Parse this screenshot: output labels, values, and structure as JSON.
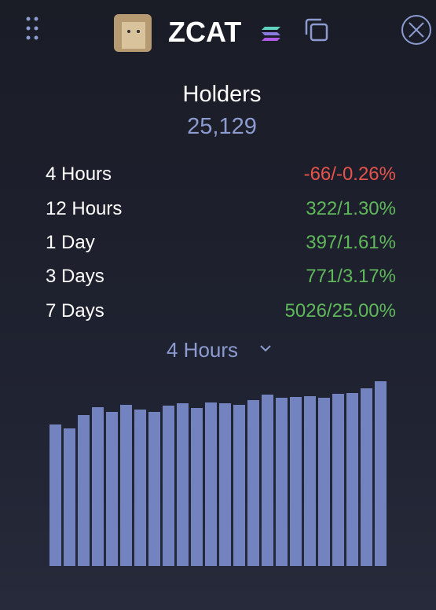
{
  "header": {
    "title": "ZCAT"
  },
  "holders": {
    "label": "Holders",
    "value": "25,129"
  },
  "stats": [
    {
      "period": "4 Hours",
      "change": "-66/-0.26%",
      "color": "#e5534b"
    },
    {
      "period": "12 Hours",
      "change": "322/1.30%",
      "color": "#5fb85a"
    },
    {
      "period": "1 Day",
      "change": "397/1.61%",
      "color": "#5fb85a"
    },
    {
      "period": "3 Days",
      "change": "771/3.17%",
      "color": "#5fb85a"
    },
    {
      "period": "7 Days",
      "change": "5026/25.00%",
      "color": "#5fb85a"
    }
  ],
  "selector": "4 Hours",
  "chart_data": {
    "type": "bar",
    "color": "#7283c0",
    "ylim": [
      0,
      240
    ],
    "values": [
      180,
      175,
      192,
      202,
      196,
      205,
      199,
      196,
      204,
      207,
      201,
      208,
      207,
      205,
      211,
      218,
      214,
      215,
      216,
      214,
      219,
      220,
      226,
      235
    ]
  }
}
